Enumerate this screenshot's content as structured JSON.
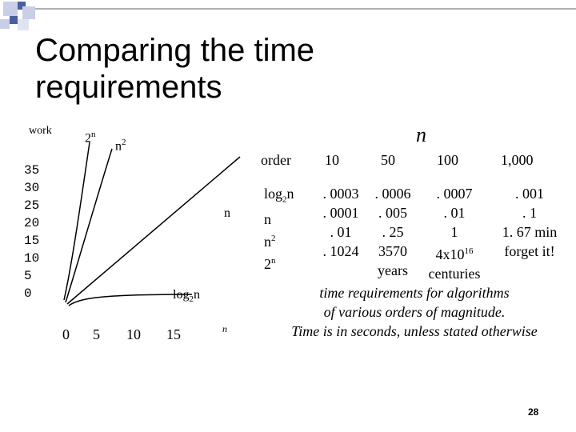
{
  "slide": {
    "title": "Comparing the time requirements",
    "page_number": "28"
  },
  "graph": {
    "y_axis_label": "work",
    "y_ticks": [
      "35",
      "30",
      "25",
      "20",
      "15",
      "10",
      "5",
      "0"
    ],
    "x_ticks": [
      "0",
      "5",
      "10",
      "15"
    ],
    "x_axis_label": "n",
    "curve_labels": {
      "exp": "2",
      "exp_sup": "n",
      "quad": "n",
      "quad_sup": "2",
      "linear": "n",
      "log": "log",
      "log_sub": "2",
      "log_tail": "n"
    }
  },
  "table": {
    "n_header": "n",
    "col_header": "order",
    "columns": [
      "10",
      "50",
      "100",
      "1,000"
    ],
    "rows": [
      {
        "order": "log",
        "order_sub": "2",
        "order_tail": "n",
        "values": [
          ". 0003",
          ". 0006",
          ". 0007",
          ". 001"
        ]
      },
      {
        "order": "n",
        "values": [
          ". 0001",
          ". 005",
          ". 01",
          ". 1"
        ]
      },
      {
        "order": "n",
        "order_sup": "2",
        "values": [
          ". 01",
          ". 25",
          "1",
          "1. 67 min"
        ]
      },
      {
        "order": "2",
        "order_sup": "n",
        "values": [
          ". 1024",
          "3570",
          "4x10",
          "forget it!"
        ],
        "sup_for_col2": "16"
      }
    ],
    "extra_row": {
      "col1": "years",
      "col2": "centuries"
    }
  },
  "caption": {
    "line1": "time requirements for algorithms",
    "line2": "of various orders of magnitude.",
    "line3": "Time is in seconds, unless stated otherwise"
  },
  "colors": {
    "accent_square": "#4a5fa0",
    "light_square": "#c8cfe6",
    "rule": "#b0b0b0"
  }
}
